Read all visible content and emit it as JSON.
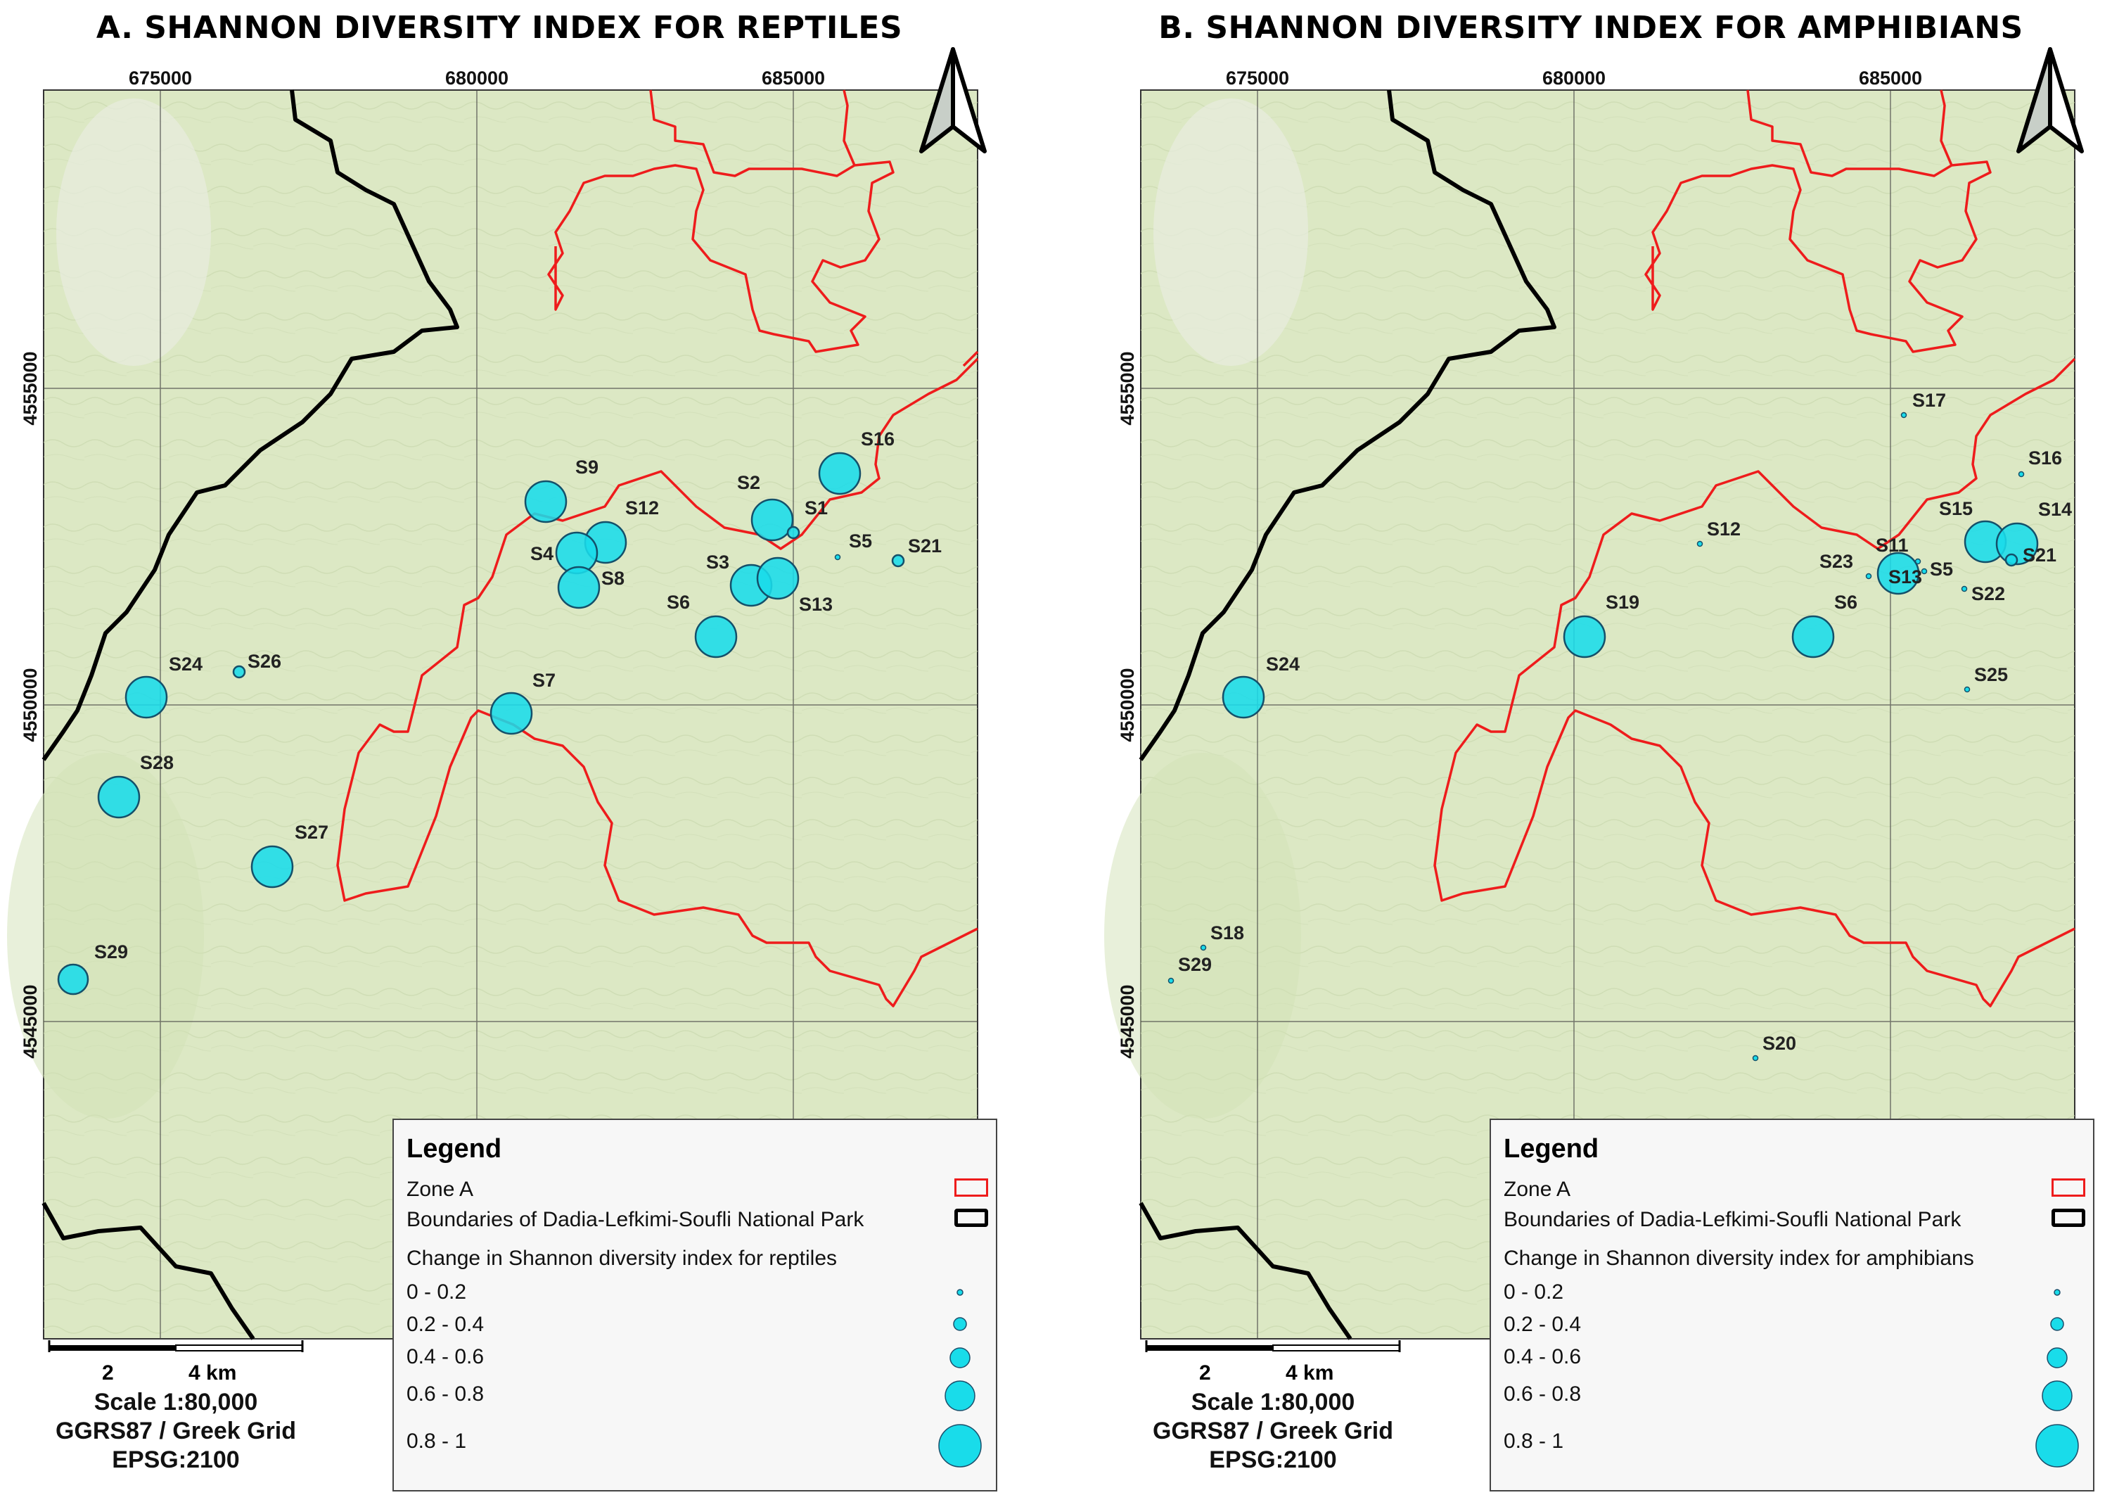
{
  "panels": [
    {
      "title": "A. SHANNON DIVERSITY INDEX FOR REPTILES",
      "legend_change_label": "Change in Shannon diversity index for reptiles",
      "sites": [
        {
          "id": "S9",
          "value": "0.6 - 0.8"
        },
        {
          "id": "S2",
          "value": "0.6 - 0.8"
        },
        {
          "id": "S1",
          "value": "0.2 - 0.4"
        },
        {
          "id": "S16",
          "value": "0.6 - 0.8"
        },
        {
          "id": "S12",
          "value": "0.6 - 0.8"
        },
        {
          "id": "S4",
          "value": "0.6 - 0.8"
        },
        {
          "id": "S8",
          "value": "0.6 - 0.8"
        },
        {
          "id": "S3",
          "value": "0.6 - 0.8"
        },
        {
          "id": "S13",
          "value": "0.6 - 0.8"
        },
        {
          "id": "S5",
          "value": "0 - 0.2"
        },
        {
          "id": "S21",
          "value": "0.2 - 0.4"
        },
        {
          "id": "S6",
          "value": "0.6 - 0.8"
        },
        {
          "id": "S7",
          "value": "0.6 - 0.8"
        },
        {
          "id": "S24",
          "value": "0.6 - 0.8"
        },
        {
          "id": "S26",
          "value": "0.2 - 0.4"
        },
        {
          "id": "S28",
          "value": "0.6 - 0.8"
        },
        {
          "id": "S27",
          "value": "0.6 - 0.8"
        },
        {
          "id": "S29",
          "value": "0.4 - 0.6"
        }
      ]
    },
    {
      "title": "B. SHANNON DIVERSITY INDEX FOR AMPHIBIANS",
      "legend_change_label": "Change in Shannon diversity index for amphibians",
      "sites": [
        {
          "id": "S17",
          "value": "0 - 0.2"
        },
        {
          "id": "S16",
          "value": "0 - 0.2"
        },
        {
          "id": "S12",
          "value": "0 - 0.2"
        },
        {
          "id": "S15",
          "value": "0.6 - 0.8"
        },
        {
          "id": "S14",
          "value": "0.6 - 0.8"
        },
        {
          "id": "S11",
          "value": "0 - 0.2"
        },
        {
          "id": "S23",
          "value": "0 - 0.2"
        },
        {
          "id": "S13",
          "value": "0.6 - 0.8"
        },
        {
          "id": "S5",
          "value": "0 - 0.2"
        },
        {
          "id": "S21",
          "value": "0.2 - 0.4"
        },
        {
          "id": "S22",
          "value": "0 - 0.2"
        },
        {
          "id": "S19",
          "value": "0.6 - 0.8"
        },
        {
          "id": "S6",
          "value": "0.6 - 0.8"
        },
        {
          "id": "S24",
          "value": "0.6 - 0.8"
        },
        {
          "id": "S25",
          "value": "0 - 0.2"
        },
        {
          "id": "S18",
          "value": "0 - 0.2"
        },
        {
          "id": "S29",
          "value": "0 - 0.2"
        },
        {
          "id": "S20",
          "value": "0 - 0.2"
        }
      ]
    }
  ],
  "grid": {
    "easting_labels": [
      "675000",
      "680000",
      "685000"
    ],
    "northing_labels": [
      "4555000",
      "4550000",
      "4545000"
    ]
  },
  "legend": {
    "title": "Legend",
    "zone_a": "Zone A",
    "boundaries": "Boundaries of Dadia-Lefkimi-Soufli National Park",
    "classes": [
      "0 - 0.2",
      "0.2 - 0.4",
      "0.4 - 0.6",
      "0.6 - 0.8",
      "0.8 - 1"
    ]
  },
  "scale": {
    "tick_2": "2",
    "tick_4": "4 km",
    "ratio": "Scale 1:80,000",
    "crs": "GGRS87 / Greek Grid",
    "epsg": "EPSG:2100"
  },
  "colors": {
    "zone_a": "#ee1c1c",
    "park_boundary": "#000000",
    "site_fill": "#19dcea",
    "map_background": "#dce8c4"
  },
  "icons": {
    "north_arrow": "north-arrow-icon"
  }
}
